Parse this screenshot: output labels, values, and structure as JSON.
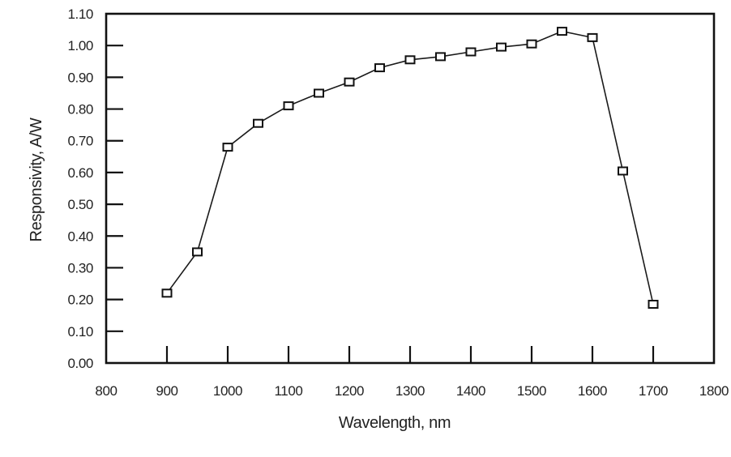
{
  "figure": {
    "background": "#ffffff",
    "frame_color": "#111111",
    "tick_color": "#111111",
    "text_color": "#222222",
    "line_color": "#1a1a1a",
    "marker_fill": "#ffffff",
    "marker_stroke": "#111111"
  },
  "chart_data": {
    "type": "line",
    "title": "",
    "xlabel": "Wavelength, nm",
    "ylabel": "Responsivity, A/W",
    "x": [
      900,
      950,
      1000,
      1050,
      1100,
      1150,
      1200,
      1250,
      1300,
      1350,
      1400,
      1450,
      1500,
      1550,
      1600,
      1650,
      1700
    ],
    "y": [
      0.22,
      0.35,
      0.68,
      0.755,
      0.81,
      0.85,
      0.885,
      0.93,
      0.955,
      0.965,
      0.98,
      0.995,
      1.005,
      1.045,
      1.025,
      0.605,
      0.185
    ],
    "xlim": [
      800,
      1800
    ],
    "ylim": [
      0.0,
      1.1
    ],
    "x_ticks": [
      800,
      900,
      1000,
      1100,
      1200,
      1300,
      1400,
      1500,
      1600,
      1700,
      1800
    ],
    "y_ticks": [
      0.0,
      0.1,
      0.2,
      0.3,
      0.4,
      0.5,
      0.6,
      0.7,
      0.8,
      0.9,
      1.0,
      1.1
    ],
    "x_tick_labels": [
      "800",
      "900",
      "1000",
      "1100",
      "1200",
      "1300",
      "1400",
      "1500",
      "1600",
      "1700",
      "1800"
    ],
    "y_tick_labels": [
      "0.00",
      "0.10",
      "0.20",
      "0.30",
      "0.40",
      "0.50",
      "0.60",
      "0.70",
      "0.80",
      "0.90",
      "1.00",
      "1.10"
    ],
    "grid": false,
    "legend": null,
    "marker": "open-square",
    "series_name": "responsivity-curve"
  }
}
